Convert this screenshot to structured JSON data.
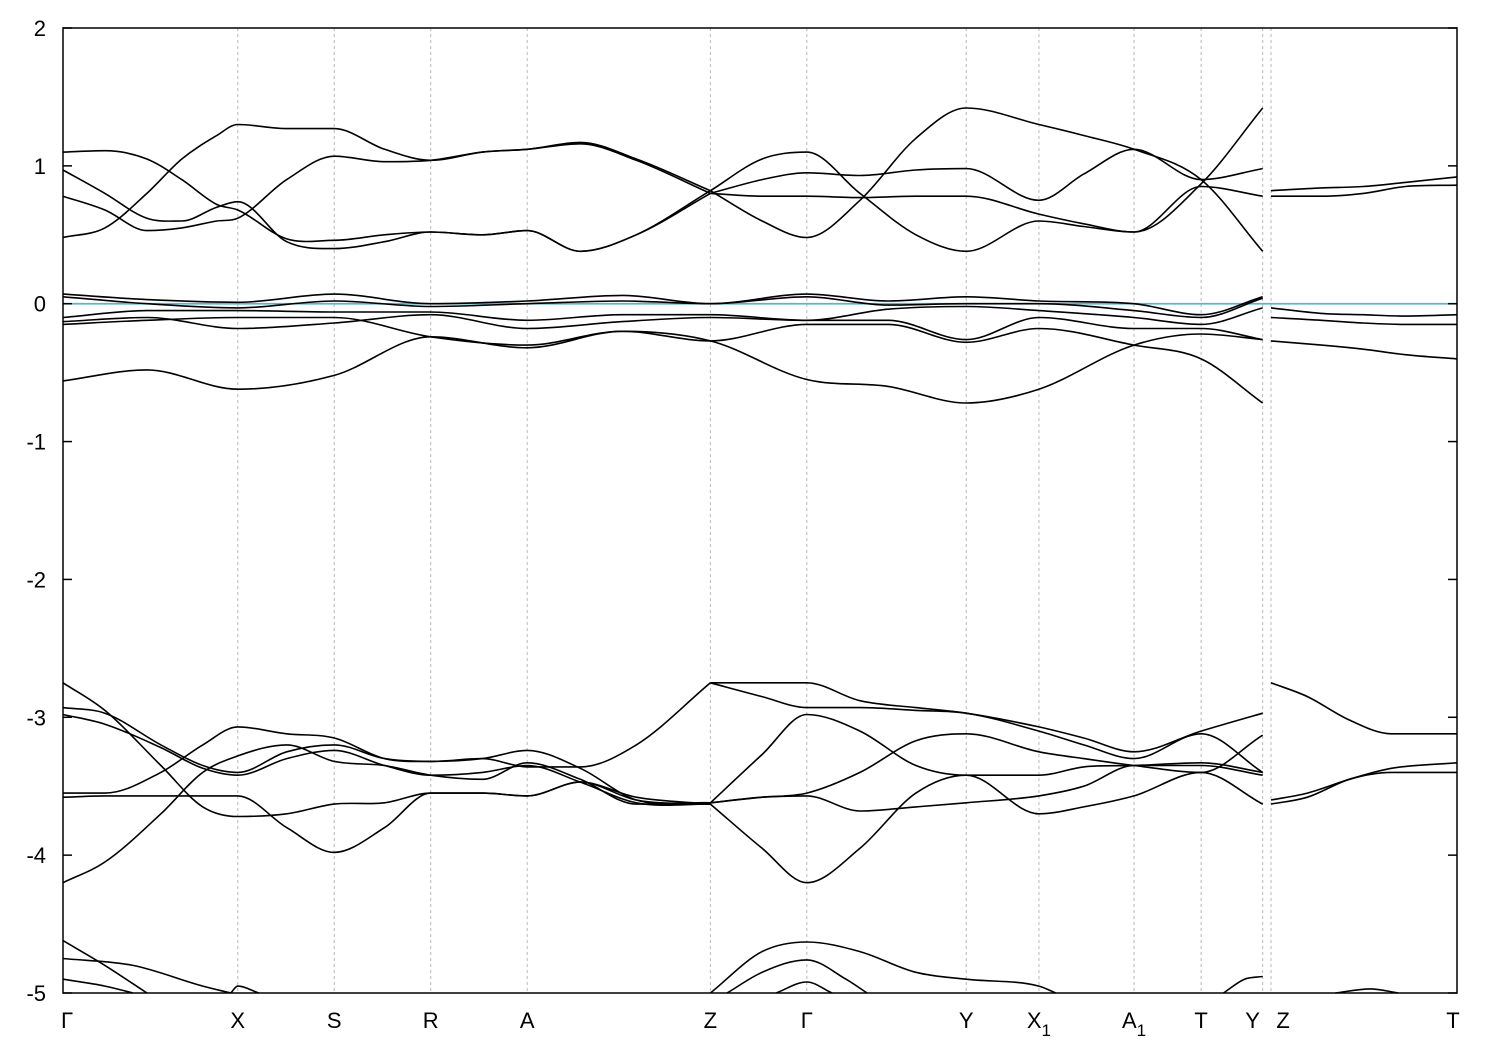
{
  "chart_data": {
    "type": "line",
    "title": "",
    "xlabel": "",
    "ylabel": "",
    "ylim": [
      -5,
      2
    ],
    "yticks": [
      -5,
      -4,
      -3,
      -2,
      -1,
      0,
      1,
      2
    ],
    "grid": "vertical dashed lines at high-symmetry points",
    "kpoints": [
      {
        "label": "Γ",
        "sub": "",
        "x": 0.0
      },
      {
        "label": "X",
        "sub": "",
        "x": 1.25
      },
      {
        "label": "S",
        "sub": "",
        "x": 1.94
      },
      {
        "label": "R",
        "sub": "",
        "x": 2.63
      },
      {
        "label": "A",
        "sub": "",
        "x": 3.32
      },
      {
        "label": "Z",
        "sub": "",
        "x": 4.63
      },
      {
        "label": "Γ",
        "sub": "",
        "x": 5.32
      },
      {
        "label": "Y",
        "sub": "",
        "x": 6.46
      },
      {
        "label": "X",
        "sub": "1",
        "x": 6.98
      },
      {
        "label": "A",
        "sub": "1",
        "x": 7.66
      },
      {
        "label": "T",
        "sub": "",
        "x": 8.14
      },
      {
        "label": "Y",
        "sub": "",
        "x": 8.58
      },
      {
        "label": "Z",
        "sub": "",
        "x": 8.64
      },
      {
        "label": "T",
        "sub": "",
        "x": 9.97
      }
    ],
    "xlim": [
      0,
      9.97
    ],
    "reference_line": {
      "y": 0.0,
      "color": "#5fb3c6"
    },
    "series": [
      {
        "x": [
          0,
          0.3,
          0.6,
          0.85,
          1.1,
          1.25,
          1.6,
          1.94,
          2.3,
          2.63,
          3.0,
          3.32,
          3.7,
          4.1,
          4.63
        ],
        "y": [
          1.1,
          1.11,
          1.05,
          0.9,
          0.72,
          0.68,
          0.47,
          0.46,
          0.5,
          0.52,
          0.5,
          0.53,
          0.38,
          0.5,
          0.82
        ]
      },
      {
        "x": [
          0,
          0.3,
          0.6,
          0.85,
          1.1,
          1.25,
          1.6,
          1.94,
          2.3,
          2.63,
          3.0,
          3.32,
          3.7,
          4.1,
          4.63
        ],
        "y": [
          0.48,
          0.55,
          0.8,
          1.05,
          1.22,
          1.3,
          1.27,
          1.27,
          1.12,
          1.04,
          1.1,
          1.12,
          1.17,
          1.05,
          0.82
        ]
      },
      {
        "x": [
          0,
          0.3,
          0.6,
          0.85,
          1.1,
          1.25,
          1.6,
          1.94,
          2.3,
          2.63,
          3.0,
          3.32,
          3.7,
          4.1,
          4.63
        ],
        "y": [
          0.97,
          0.8,
          0.62,
          0.6,
          0.7,
          0.74,
          0.45,
          0.4,
          0.45,
          0.52,
          0.5,
          0.53,
          0.38,
          0.5,
          0.8
        ]
      },
      {
        "x": [
          0,
          0.3,
          0.6,
          0.85,
          1.1,
          1.25,
          1.6,
          1.94,
          2.3,
          2.63,
          3.0,
          3.32,
          3.7,
          4.1,
          4.63
        ],
        "y": [
          0.78,
          0.68,
          0.53,
          0.55,
          0.6,
          0.62,
          0.9,
          1.07,
          1.03,
          1.04,
          1.1,
          1.12,
          1.16,
          1.04,
          0.8
        ]
      },
      {
        "x": [
          4.63,
          5.0,
          5.32,
          5.7,
          6.1,
          6.46,
          6.98,
          7.3,
          7.66,
          8.14,
          8.58
        ],
        "y": [
          0.82,
          1.05,
          1.1,
          0.8,
          0.5,
          0.38,
          0.6,
          0.56,
          0.52,
          0.87,
          1.42
        ]
      },
      {
        "x": [
          4.63,
          5.0,
          5.32,
          5.7,
          6.1,
          6.46,
          6.98,
          7.3,
          7.66,
          8.14,
          8.58
        ],
        "y": [
          0.82,
          0.6,
          0.48,
          0.75,
          1.2,
          1.42,
          1.3,
          1.22,
          1.12,
          0.9,
          0.38
        ]
      },
      {
        "x": [
          4.63,
          5.0,
          5.32,
          5.7,
          6.1,
          6.46,
          6.98,
          7.3,
          7.66,
          8.14,
          8.58
        ],
        "y": [
          0.8,
          0.9,
          0.95,
          0.93,
          0.97,
          0.98,
          0.75,
          0.94,
          1.12,
          0.9,
          0.98
        ]
      },
      {
        "x": [
          4.63,
          5.0,
          5.32,
          5.7,
          6.1,
          6.46,
          6.98,
          7.3,
          7.66,
          8.14,
          8.58
        ],
        "y": [
          0.8,
          0.78,
          0.78,
          0.77,
          0.78,
          0.78,
          0.65,
          0.58,
          0.52,
          0.85,
          0.78
        ]
      },
      {
        "x": [
          8.64,
          9.0,
          9.3,
          9.6,
          9.97
        ],
        "y": [
          0.82,
          0.84,
          0.85,
          0.88,
          0.92
        ]
      },
      {
        "x": [
          8.64,
          9.0,
          9.3,
          9.6,
          9.97
        ],
        "y": [
          0.78,
          0.78,
          0.8,
          0.85,
          0.86
        ]
      },
      {
        "x": [
          0,
          0.6,
          1.25,
          1.94,
          2.63,
          3.32,
          4.0,
          4.63,
          5.32,
          5.9,
          6.46,
          6.98,
          7.66,
          8.14,
          8.58
        ],
        "y": [
          0.07,
          0.03,
          0.01,
          0.07,
          0.0,
          0.02,
          0.06,
          0.0,
          0.07,
          0.02,
          0.05,
          0.02,
          0.0,
          -0.08,
          0.05
        ]
      },
      {
        "x": [
          0,
          0.6,
          1.25,
          1.94,
          2.63,
          3.32,
          4.0,
          4.63,
          5.32,
          5.9,
          6.46,
          6.98,
          7.66,
          8.14,
          8.58
        ],
        "y": [
          0.05,
          0.0,
          -0.03,
          0.02,
          -0.02,
          0.0,
          0.02,
          0.0,
          0.05,
          -0.01,
          0.0,
          0.0,
          -0.05,
          -0.1,
          0.04
        ]
      },
      {
        "x": [
          0,
          0.6,
          1.25,
          1.94,
          2.63,
          3.32,
          4.0,
          4.63,
          5.32,
          5.9,
          6.46,
          6.98,
          7.66,
          8.14,
          8.58
        ],
        "y": [
          -0.1,
          -0.05,
          -0.05,
          -0.06,
          -0.06,
          -0.12,
          -0.08,
          -0.08,
          -0.12,
          -0.04,
          -0.02,
          -0.05,
          -0.1,
          -0.15,
          -0.03
        ]
      },
      {
        "x": [
          0,
          0.6,
          1.25,
          1.94,
          2.63,
          3.32,
          4.0,
          4.63,
          5.32,
          5.9,
          6.46,
          6.98,
          7.66,
          8.14,
          8.58
        ],
        "y": [
          -0.13,
          -0.1,
          -0.18,
          -0.14,
          -0.08,
          -0.18,
          -0.13,
          -0.1,
          -0.12,
          -0.12,
          -0.26,
          -0.1,
          -0.18,
          -0.18,
          -0.26
        ]
      },
      {
        "x": [
          0,
          0.6,
          1.25,
          1.94,
          2.63,
          3.32,
          4.0,
          4.63,
          5.32,
          5.9,
          6.46,
          6.98,
          7.66,
          8.14,
          8.58
        ],
        "y": [
          -0.15,
          -0.12,
          -0.1,
          -0.1,
          -0.24,
          -0.3,
          -0.2,
          -0.27,
          -0.15,
          -0.15,
          -0.28,
          -0.18,
          -0.3,
          -0.4,
          -0.72
        ]
      },
      {
        "x": [
          0,
          0.6,
          1.25,
          1.94,
          2.63,
          3.32,
          4.0,
          4.63,
          5.32,
          5.9,
          6.46,
          6.98,
          7.66,
          8.14,
          8.58
        ],
        "y": [
          -0.56,
          -0.48,
          -0.62,
          -0.52,
          -0.24,
          -0.32,
          -0.2,
          -0.27,
          -0.55,
          -0.6,
          -0.72,
          -0.62,
          -0.3,
          -0.22,
          -0.26
        ]
      },
      {
        "x": [
          8.64,
          9.0,
          9.3,
          9.6,
          9.97
        ],
        "y": [
          -0.1,
          -0.12,
          -0.14,
          -0.15,
          -0.15
        ]
      },
      {
        "x": [
          8.64,
          9.0,
          9.3,
          9.6,
          9.97
        ],
        "y": [
          -0.03,
          -0.07,
          -0.08,
          -0.09,
          -0.08
        ]
      },
      {
        "x": [
          8.64,
          9.0,
          9.3,
          9.6,
          9.97
        ],
        "y": [
          -0.27,
          -0.3,
          -0.33,
          -0.37,
          -0.4
        ]
      },
      {
        "x": [
          0,
          0.3,
          0.7,
          1.0,
          1.25,
          1.6,
          1.94,
          2.3,
          2.63,
          3.0,
          3.32,
          3.7,
          4.1,
          4.63
        ],
        "y": [
          -2.75,
          -2.95,
          -3.35,
          -3.65,
          -3.72,
          -3.7,
          -3.63,
          -3.62,
          -3.55,
          -3.55,
          -3.57,
          -3.47,
          -3.58,
          -3.63
        ]
      },
      {
        "x": [
          0,
          0.3,
          0.7,
          1.0,
          1.25,
          1.6,
          1.94,
          2.3,
          2.63,
          3.0,
          3.32,
          3.7,
          4.1,
          4.63
        ],
        "y": [
          -2.93,
          -2.97,
          -3.2,
          -3.35,
          -3.4,
          -3.25,
          -3.2,
          -3.3,
          -3.32,
          -3.3,
          -3.24,
          -3.37,
          -3.6,
          -3.62
        ]
      },
      {
        "x": [
          0,
          0.3,
          0.7,
          1.0,
          1.25,
          1.6,
          1.94,
          2.3,
          2.63,
          3.0,
          3.32,
          3.7,
          4.1,
          4.63
        ],
        "y": [
          -2.98,
          -3.05,
          -3.22,
          -3.37,
          -3.42,
          -3.3,
          -3.24,
          -3.35,
          -3.42,
          -3.4,
          -3.35,
          -3.47,
          -3.62,
          -3.63
        ]
      },
      {
        "x": [
          0,
          0.3,
          0.7,
          1.0,
          1.25,
          1.6,
          1.94,
          2.3,
          2.63,
          3.0,
          3.32,
          3.7,
          4.1,
          4.63
        ],
        "y": [
          -3.55,
          -3.55,
          -3.4,
          -3.2,
          -3.07,
          -3.12,
          -3.15,
          -3.3,
          -3.32,
          -3.3,
          -3.36,
          -3.36,
          -3.2,
          -2.75
        ]
      },
      {
        "x": [
          0,
          0.3,
          0.7,
          1.0,
          1.25,
          1.6,
          1.94,
          2.3,
          2.63,
          3.0,
          3.32,
          3.7,
          4.1,
          4.63
        ],
        "y": [
          -3.58,
          -3.57,
          -3.57,
          -3.57,
          -3.57,
          -3.8,
          -3.98,
          -3.8,
          -3.55,
          -3.55,
          -3.57,
          -3.47,
          -3.6,
          -3.63
        ]
      },
      {
        "x": [
          0,
          0.3,
          0.7,
          1.0,
          1.25,
          1.6,
          1.94,
          2.3,
          2.63,
          3.0,
          3.32,
          3.7,
          4.1,
          4.63
        ],
        "y": [
          -4.2,
          -4.05,
          -3.7,
          -3.4,
          -3.28,
          -3.2,
          -3.32,
          -3.35,
          -3.42,
          -3.45,
          -3.33,
          -3.45,
          -3.63,
          -3.63
        ]
      },
      {
        "x": [
          4.63,
          5.0,
          5.32,
          5.7,
          6.1,
          6.46,
          6.98,
          7.3,
          7.66,
          8.14,
          8.58
        ],
        "y": [
          -2.75,
          -2.75,
          -2.75,
          -2.88,
          -2.93,
          -2.97,
          -3.07,
          -3.15,
          -3.25,
          -3.1,
          -2.97
        ]
      },
      {
        "x": [
          4.63,
          5.0,
          5.32,
          5.7,
          6.1,
          6.46,
          6.98,
          7.3,
          7.66,
          8.14,
          8.58
        ],
        "y": [
          -2.75,
          -2.85,
          -2.93,
          -2.93,
          -2.95,
          -2.97,
          -3.1,
          -3.2,
          -3.3,
          -3.12,
          -3.4
        ]
      },
      {
        "x": [
          4.63,
          5.0,
          5.32,
          5.7,
          6.1,
          6.46,
          6.98,
          7.3,
          7.66,
          8.14,
          8.58
        ],
        "y": [
          -3.62,
          -3.27,
          -2.98,
          -3.1,
          -3.35,
          -3.42,
          -3.42,
          -3.36,
          -3.35,
          -3.33,
          -3.4
        ]
      },
      {
        "x": [
          4.63,
          5.0,
          5.32,
          5.7,
          6.1,
          6.46,
          6.98,
          7.3,
          7.66,
          8.14,
          8.58
        ],
        "y": [
          -3.62,
          -3.58,
          -3.57,
          -3.68,
          -3.65,
          -3.62,
          -3.57,
          -3.5,
          -3.35,
          -3.35,
          -3.42
        ]
      },
      {
        "x": [
          4.63,
          5.0,
          5.32,
          5.7,
          6.1,
          6.46,
          6.98,
          7.3,
          7.66,
          8.14,
          8.58
        ],
        "y": [
          -3.62,
          -3.58,
          -3.55,
          -3.4,
          -3.17,
          -3.12,
          -3.25,
          -3.3,
          -3.35,
          -3.4,
          -3.13
        ]
      },
      {
        "x": [
          4.63,
          5.0,
          5.32,
          5.7,
          6.1,
          6.46,
          6.98,
          7.3,
          7.66,
          8.14,
          8.58
        ],
        "y": [
          -3.63,
          -3.95,
          -4.2,
          -3.95,
          -3.55,
          -3.42,
          -3.7,
          -3.65,
          -3.57,
          -3.4,
          -3.63
        ]
      },
      {
        "x": [
          8.64,
          8.9,
          9.2,
          9.5,
          9.97
        ],
        "y": [
          -2.75,
          -2.85,
          -3.02,
          -3.12,
          -3.12
        ]
      },
      {
        "x": [
          8.64,
          8.9,
          9.2,
          9.5,
          9.97
        ],
        "y": [
          -3.6,
          -3.55,
          -3.45,
          -3.37,
          -3.33
        ]
      },
      {
        "x": [
          8.64,
          8.9,
          9.2,
          9.5,
          9.97
        ],
        "y": [
          -3.63,
          -3.58,
          -3.45,
          -3.4,
          -3.4
        ]
      },
      {
        "x": [
          0,
          0.3,
          0.6
        ],
        "y": [
          -4.62,
          -4.8,
          -5.0
        ]
      },
      {
        "x": [
          0,
          0.5,
          1.0,
          1.2
        ],
        "y": [
          -4.75,
          -4.8,
          -4.95,
          -5.0
        ]
      },
      {
        "x": [
          0,
          0.3,
          0.5
        ],
        "y": [
          -4.9,
          -4.95,
          -5.0
        ]
      },
      {
        "x": [
          1.2,
          1.25,
          1.4
        ],
        "y": [
          -5.0,
          -4.95,
          -5.0
        ]
      },
      {
        "x": [
          4.63,
          5.0,
          5.32,
          5.7,
          6.1,
          6.46,
          6.98,
          7.1
        ],
        "y": [
          -5.0,
          -4.7,
          -4.63,
          -4.7,
          -4.85,
          -4.9,
          -4.95,
          -5.0
        ]
      },
      {
        "x": [
          4.75,
          5.0,
          5.32,
          5.6,
          5.75
        ],
        "y": [
          -5.0,
          -4.85,
          -4.76,
          -4.9,
          -5.0
        ]
      },
      {
        "x": [
          5.1,
          5.32,
          5.5
        ],
        "y": [
          -5.0,
          -4.92,
          -5.0
        ]
      },
      {
        "x": [
          8.3,
          8.45,
          8.58
        ],
        "y": [
          -5.0,
          -4.9,
          -4.88
        ]
      },
      {
        "x": [
          9.1,
          9.35,
          9.55
        ],
        "y": [
          -5.0,
          -4.97,
          -5.0
        ]
      }
    ]
  }
}
